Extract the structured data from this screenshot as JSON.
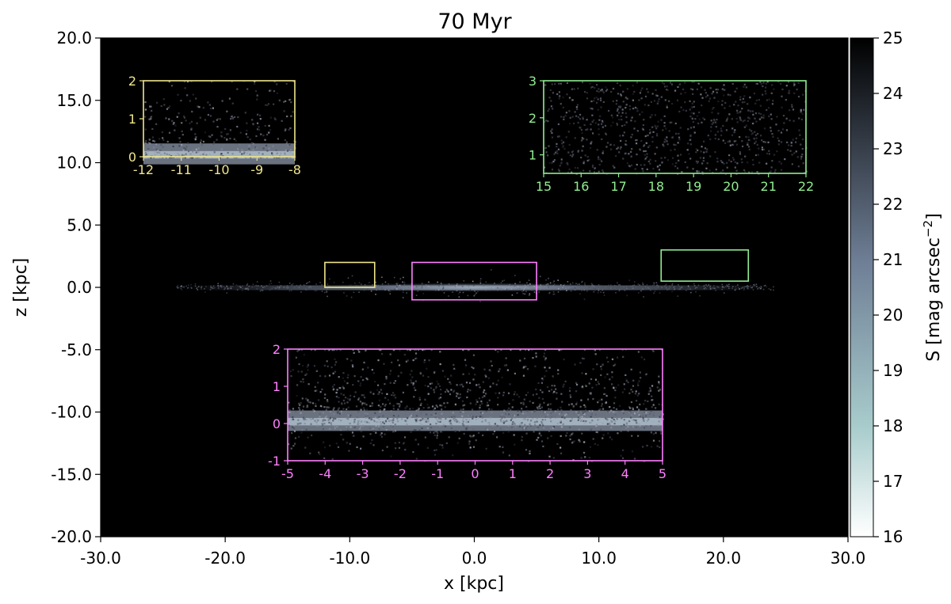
{
  "chart_data": {
    "type": "heatmap",
    "title": "70 Myr",
    "xlabel": "x [kpc]",
    "ylabel": "z [kpc]",
    "xlim": [
      -30,
      30
    ],
    "ylim": [
      -20,
      20
    ],
    "xticks": [
      -30,
      -20,
      -10,
      0,
      10,
      20,
      30
    ],
    "xtick_labels": [
      "-30.0",
      "-20.0",
      "-10.0",
      "0.0",
      "10.0",
      "20.0",
      "30.0"
    ],
    "yticks": [
      -20,
      -15,
      -10,
      -5,
      0,
      5,
      10,
      15,
      20
    ],
    "ytick_labels": [
      "-20.0",
      "-15.0",
      "-10.0",
      "-5.0",
      "0.0",
      "5.0",
      "10.0",
      "15.0",
      "20.0"
    ],
    "grid": false,
    "background_color": "#000000",
    "colorbar": {
      "label": "S [mag arcsec",
      "label_exponent": "−2",
      "label_suffix": "]",
      "range": [
        16,
        25
      ],
      "ticks": [
        16,
        17,
        18,
        19,
        20,
        21,
        22,
        23,
        24,
        25
      ],
      "tick_labels": [
        "16",
        "17",
        "18",
        "19",
        "20",
        "21",
        "22",
        "23",
        "24",
        "25"
      ],
      "colormap": "bone",
      "colors": [
        "#ffffff",
        "#a8cccc",
        "#6f7f96",
        "#000000"
      ]
    },
    "disk": {
      "x_extent": [
        -24,
        24
      ],
      "thickness_kpc": 0.6,
      "center_brightness_mag": 19.5,
      "edge_brightness_mag": 23.5
    },
    "regions": [
      {
        "name": "yellow",
        "color": "#f0e68c",
        "box": [
          -12,
          -8,
          0,
          2
        ],
        "inset_xlim": [
          -12,
          -8
        ],
        "inset_ylim": [
          0,
          2
        ],
        "inset_xticks": [
          -12,
          -11,
          -10,
          -9,
          -8
        ],
        "inset_xtick_labels": [
          "-12",
          "-11",
          "-10",
          "-9",
          "-8"
        ],
        "inset_yticks": [
          0,
          1,
          2
        ],
        "inset_ytick_labels": [
          "0",
          "1",
          "2"
        ],
        "inset_location": "top-left"
      },
      {
        "name": "green",
        "color": "#90ee90",
        "box": [
          15,
          22,
          0.5,
          3
        ],
        "inset_xlim": [
          15,
          22
        ],
        "inset_ylim": [
          0.5,
          3
        ],
        "inset_xticks": [
          15,
          16,
          17,
          18,
          19,
          20,
          21,
          22
        ],
        "inset_xtick_labels": [
          "15",
          "16",
          "17",
          "18",
          "19",
          "20",
          "21",
          "22"
        ],
        "inset_yticks": [
          1,
          2,
          3
        ],
        "inset_ytick_labels": [
          "1",
          "2",
          "3"
        ],
        "inset_location": "top-right"
      },
      {
        "name": "magenta",
        "color": "#ff80ff",
        "box": [
          -5,
          5,
          -1,
          2
        ],
        "inset_xlim": [
          -5,
          5
        ],
        "inset_ylim": [
          -1,
          2
        ],
        "inset_xticks": [
          -5,
          -4,
          -3,
          -2,
          -1,
          0,
          1,
          2,
          3,
          4,
          5
        ],
        "inset_xtick_labels": [
          "-5",
          "-4",
          "-3",
          "-2",
          "-1",
          "0",
          "1",
          "2",
          "3",
          "4",
          "5"
        ],
        "inset_yticks": [
          -1,
          0,
          1,
          2
        ],
        "inset_ytick_labels": [
          "-1",
          "0",
          "1",
          "2"
        ],
        "inset_location": "bottom-center"
      }
    ]
  }
}
